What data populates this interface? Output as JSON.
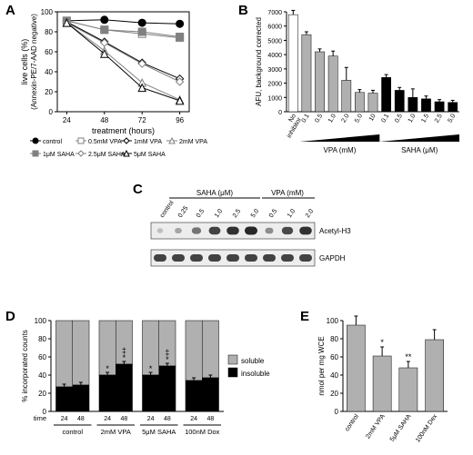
{
  "panelA": {
    "label": "A",
    "x_title": "treatment (hours)",
    "y_title": "live cells (%)\n(Annexin-PE/7-AAD negative)",
    "x_ticks": [
      24,
      48,
      72,
      96
    ],
    "y_ticks": [
      0,
      20,
      40,
      60,
      80,
      100
    ],
    "xlim": [
      18,
      102
    ],
    "ylim": [
      0,
      100
    ],
    "series": [
      {
        "name": "control",
        "marker": "circle",
        "filled": true,
        "color": "#000000",
        "x": [
          24,
          48,
          72,
          96
        ],
        "y": [
          91,
          92,
          89,
          88
        ]
      },
      {
        "name": "0.5mM VPA",
        "marker": "square",
        "filled": false,
        "color": "#808080",
        "x": [
          24,
          48,
          72,
          96
        ],
        "y": [
          91,
          82,
          78,
          74
        ]
      },
      {
        "name": "1mM VPA",
        "marker": "diamond",
        "filled": false,
        "color": "#000000",
        "x": [
          24,
          48,
          72,
          96
        ],
        "y": [
          90,
          70,
          49,
          33
        ]
      },
      {
        "name": "2mM VPA",
        "marker": "triangle",
        "filled": false,
        "color": "#808080",
        "x": [
          24,
          48,
          72,
          96
        ],
        "y": [
          89,
          61,
          29,
          12
        ]
      },
      {
        "name": "1μM SAHA",
        "marker": "square",
        "filled": true,
        "color": "#808080",
        "x": [
          24,
          48,
          72,
          96
        ],
        "y": [
          91,
          82,
          80,
          75
        ]
      },
      {
        "name": "2.5μM SAHA",
        "marker": "diamond",
        "filled": false,
        "color": "#808080",
        "x": [
          24,
          48,
          72,
          96
        ],
        "y": [
          89,
          69,
          48,
          30
        ]
      },
      {
        "name": "5μM SAHA",
        "marker": "triangle",
        "filled": false,
        "color": "#000000",
        "x": [
          24,
          48,
          72,
          96
        ],
        "y": [
          89,
          58,
          24,
          11
        ]
      }
    ],
    "marker_size": 4,
    "line_width": 1
  },
  "panelB": {
    "label": "B",
    "y_title": "AFU, background corrected",
    "y_ticks": [
      0,
      1000,
      2000,
      3000,
      4000,
      5000,
      6000,
      7000
    ],
    "ylim": [
      0,
      7000
    ],
    "groups": [
      {
        "label": "No inhibitor",
        "color": "#ffffff",
        "bars": [
          {
            "label": "",
            "value": 6800,
            "err": 300
          }
        ]
      },
      {
        "label": "VPA (mM)",
        "color": "#b0b0b0",
        "unit": "mM",
        "bars": [
          {
            "label": "0.1",
            "value": 5400,
            "err": 200
          },
          {
            "label": "0.5",
            "value": 4200,
            "err": 200
          },
          {
            "label": "1.0",
            "value": 3900,
            "err": 350
          },
          {
            "label": "2.0",
            "value": 2200,
            "err": 900
          },
          {
            "label": "5.0",
            "value": 1350,
            "err": 200
          },
          {
            "label": "10",
            "value": 1300,
            "err": 200
          }
        ]
      },
      {
        "label": "SAHA (μM)",
        "color": "#000000",
        "unit": "μM",
        "bars": [
          {
            "label": "0.1",
            "value": 2400,
            "err": 200
          },
          {
            "label": "0.5",
            "value": 1500,
            "err": 200
          },
          {
            "label": "1.0",
            "value": 1000,
            "err": 600
          },
          {
            "label": "1.5",
            "value": 900,
            "err": 200
          },
          {
            "label": "2.5",
            "value": 700,
            "err": 150
          },
          {
            "label": "5.0",
            "value": 650,
            "err": 150
          }
        ]
      }
    ],
    "bar_width": 0.7
  },
  "panelC": {
    "label": "C",
    "groups": [
      "control",
      "SAHA (μM)",
      "VPA (mM)"
    ],
    "saha_labels": [
      "0.25",
      "0.5",
      "1.0",
      "2.5",
      "5.0"
    ],
    "vpa_labels": [
      "0.5",
      "1.0",
      "2.0"
    ],
    "rows": [
      "Acetyl-H3",
      "GAPDH"
    ],
    "h3_intensity": [
      0.1,
      0.25,
      0.55,
      0.85,
      0.95,
      1.0,
      0.4,
      0.8,
      0.95
    ],
    "gapdh_intensity": [
      0.85,
      0.85,
      0.85,
      0.85,
      0.85,
      0.85,
      0.85,
      0.85,
      0.85
    ],
    "band_bg": "#ededed"
  },
  "panelD": {
    "label": "D",
    "y_title": "% incorporated counts",
    "y_ticks": [
      0,
      20,
      40,
      60,
      80,
      100
    ],
    "legend": [
      "soluble",
      "insoluble"
    ],
    "legend_colors": [
      "#b0b0b0",
      "#000000"
    ],
    "time_labels": [
      "24",
      "48"
    ],
    "groups": [
      {
        "label": "control",
        "insoluble": [
          27,
          29
        ],
        "err": [
          3,
          3
        ],
        "mark": [
          "",
          ""
        ]
      },
      {
        "label": "2mM VPA",
        "insoluble": [
          40,
          52
        ],
        "err": [
          3,
          3
        ],
        "mark": [
          "*",
          "‡*"
        ]
      },
      {
        "label": "5μM SAHA",
        "insoluble": [
          40,
          50
        ],
        "err": [
          3,
          3
        ],
        "mark": [
          "*",
          "‡*"
        ]
      },
      {
        "label": "100nM Dox",
        "insoluble": [
          34,
          37
        ],
        "err": [
          3,
          3
        ],
        "mark": [
          "",
          ""
        ]
      }
    ],
    "x_label": "time"
  },
  "panelE": {
    "label": "E",
    "y_title": "nmol per mg WCE",
    "y_ticks": [
      0,
      20,
      40,
      60,
      80,
      100
    ],
    "bars": [
      {
        "label": "control",
        "value": 95,
        "err": 10,
        "mark": ""
      },
      {
        "label": "2mM VPA",
        "value": 61,
        "err": 10,
        "mark": "*"
      },
      {
        "label": "5μM SAHA",
        "value": 48,
        "err": 7,
        "mark": "**"
      },
      {
        "label": "100nM Dex",
        "value": 79,
        "err": 11,
        "mark": ""
      }
    ],
    "bar_color": "#b0b0b0"
  }
}
